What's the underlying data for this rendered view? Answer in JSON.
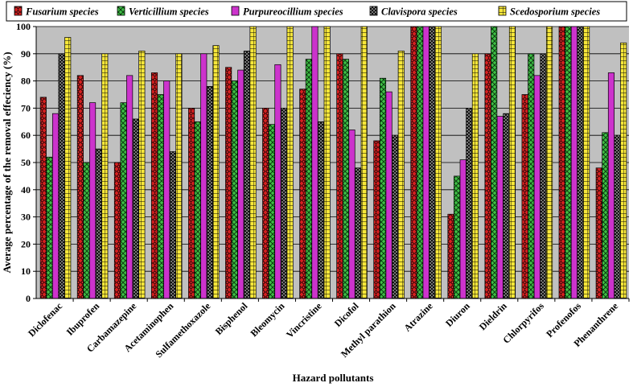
{
  "chart_data": {
    "type": "bar",
    "title": "",
    "xlabel": "Hazard pollutants",
    "ylabel": "Average percentage of the removal effeciency (%)",
    "ylim": [
      0,
      100
    ],
    "yticks": [
      0,
      10,
      20,
      30,
      40,
      50,
      60,
      70,
      80,
      90,
      100
    ],
    "legend_position": "top",
    "categories": [
      "Diclofenac",
      "Ibuprofen",
      "Carbamazepine",
      "Acetaminophen",
      "Sulfamethoxazole",
      "Bisphenol",
      "Bleomycin",
      "Vincristine",
      "Dicofol",
      "Methyl parathion",
      "Atrazine",
      "Diuron",
      "Dieldrin",
      "Chlorpyrifos",
      "Profenofos",
      "Phenanthrene"
    ],
    "series": [
      {
        "name": "Fusarium species",
        "color": "#cc1f1f",
        "pattern": "diamond",
        "values": [
          74,
          82,
          50,
          83,
          70,
          85,
          70,
          77,
          90,
          58,
          100,
          31,
          90,
          75,
          100,
          48
        ]
      },
      {
        "name": "Verticillium species",
        "color": "#3cb043",
        "pattern": "cross",
        "values": [
          52,
          50,
          72,
          75,
          65,
          80,
          64,
          88,
          88,
          81,
          100,
          45,
          100,
          90,
          100,
          61
        ]
      },
      {
        "name": "Purpureocillium species",
        "color": "#cc33cc",
        "pattern": "solid",
        "values": [
          68,
          72,
          82,
          80,
          90,
          84,
          86,
          100,
          62,
          76,
          100,
          51,
          67,
          82,
          100,
          83
        ]
      },
      {
        "name": "Clavispora species",
        "color": "#111111",
        "pattern": "dots",
        "values": [
          90,
          55,
          66,
          54,
          78,
          91,
          70,
          65,
          48,
          60,
          100,
          70,
          68,
          90,
          100,
          60
        ]
      },
      {
        "name": "Scedosporium species",
        "color": "#f5e63b",
        "pattern": "grid",
        "values": [
          96,
          90,
          91,
          90,
          93,
          100,
          100,
          100,
          100,
          91,
          100,
          90,
          100,
          100,
          100,
          94
        ]
      }
    ]
  }
}
